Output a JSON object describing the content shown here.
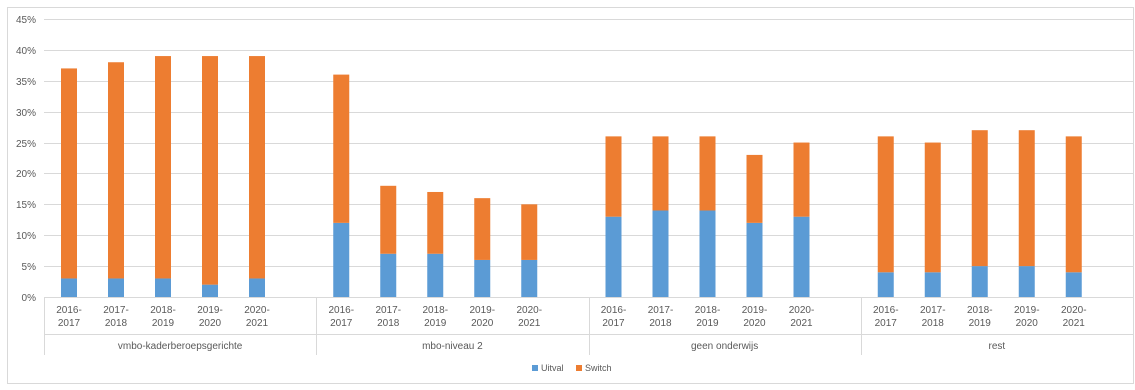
{
  "colors": {
    "uitval": "#5B9BD5",
    "switch": "#ED7D31",
    "grid": "#D9D9D9",
    "axis_text": "#595959"
  },
  "chart_data": {
    "type": "bar",
    "stacked": true,
    "groups": [
      {
        "label": "vmbo-kaderberoepsgerichte",
        "periods": [
          "2016-2017",
          "2017-2018",
          "2018-2019",
          "2019-2020",
          "2020-2021"
        ],
        "uitval": [
          3,
          3,
          3,
          2,
          3
        ],
        "switch": [
          34,
          35,
          36,
          37,
          36
        ]
      },
      {
        "label": "mbo-niveau 2",
        "periods": [
          "2016-2017",
          "2017-2018",
          "2018-2019",
          "2019-2020",
          "2020-2021"
        ],
        "uitval": [
          12,
          7,
          7,
          6,
          6
        ],
        "switch": [
          24,
          11,
          10,
          10,
          9
        ]
      },
      {
        "label": "geen onderwijs",
        "periods": [
          "2016-2017",
          "2017-2018",
          "2018-2019",
          "2019-2020",
          "2020-2021"
        ],
        "uitval": [
          13,
          14,
          14,
          12,
          13
        ],
        "switch": [
          13,
          12,
          12,
          11,
          12
        ]
      },
      {
        "label": "rest",
        "periods": [
          "2016-2017",
          "2017-2018",
          "2018-2019",
          "2019-2020",
          "2020-2021"
        ],
        "uitval": [
          4,
          4,
          5,
          5,
          4
        ],
        "switch": [
          22,
          21,
          22,
          22,
          22
        ]
      }
    ],
    "series": [
      {
        "name": "Uitval",
        "key": "uitval"
      },
      {
        "name": "Switch",
        "key": "switch"
      }
    ],
    "y_ticks": [
      "0%",
      "5%",
      "10%",
      "15%",
      "20%",
      "25%",
      "30%",
      "35%",
      "40%",
      "45%"
    ],
    "ylim": [
      0,
      45
    ],
    "grid": true,
    "legend_position": "bottom"
  }
}
